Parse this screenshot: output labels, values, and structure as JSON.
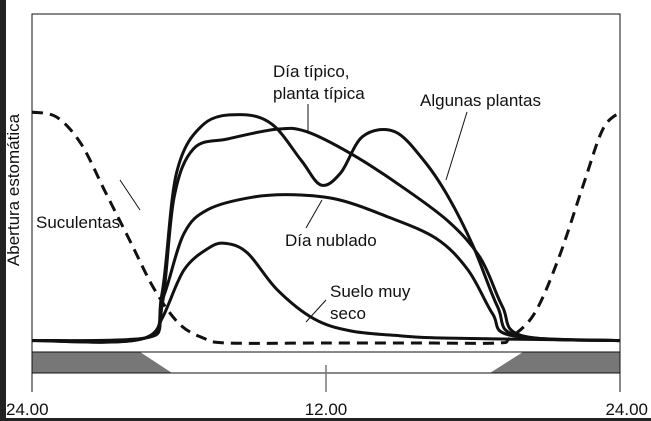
{
  "chart_data": {
    "type": "line",
    "ylabel": "Abertura estomática",
    "xlabel": "",
    "x_ticks": [
      "24.00",
      "12.00",
      "24.00"
    ],
    "xlim_hours": [
      0,
      24
    ],
    "ylim": [
      0,
      1
    ],
    "grid": false,
    "night_day_bar": {
      "night_color": "#777777",
      "day_color": "#ffffff"
    },
    "series": [
      {
        "name": "Día típico, planta típica",
        "style": "solid",
        "x": [
          0,
          4.6,
          5.3,
          5.8,
          6.6,
          8,
          10,
          11.2,
          13,
          15,
          17,
          18.3,
          19.2,
          20,
          24
        ],
        "y": [
          0.01,
          0.02,
          0.15,
          0.6,
          0.8,
          0.84,
          0.88,
          0.87,
          0.78,
          0.65,
          0.5,
          0.35,
          0.15,
          0.03,
          0.01
        ]
      },
      {
        "name": "Algunas plantas",
        "style": "solid",
        "x": [
          0,
          4.6,
          5.3,
          5.9,
          7,
          8.5,
          9.8,
          11,
          11.8,
          12.6,
          13.5,
          14.8,
          16,
          17,
          18,
          19,
          19.8,
          24
        ],
        "y": [
          0.01,
          0.02,
          0.2,
          0.7,
          0.9,
          0.94,
          0.9,
          0.75,
          0.65,
          0.7,
          0.85,
          0.87,
          0.75,
          0.6,
          0.4,
          0.15,
          0.03,
          0.01
        ]
      },
      {
        "name": "Día nublado",
        "style": "solid",
        "x": [
          0,
          4.6,
          5.4,
          6.2,
          7.2,
          9,
          10.7,
          12.5,
          14.5,
          16.5,
          17.8,
          18.8,
          19.6,
          24
        ],
        "y": [
          0.01,
          0.02,
          0.2,
          0.45,
          0.55,
          0.6,
          0.61,
          0.59,
          0.52,
          0.43,
          0.3,
          0.12,
          0.03,
          0.01
        ]
      },
      {
        "name": "Suelo muy seco",
        "style": "solid",
        "x": [
          0,
          4.6,
          5.3,
          6.2,
          7.2,
          7.9,
          8.8,
          10,
          11.5,
          13,
          15,
          17,
          24
        ],
        "y": [
          0.01,
          0.02,
          0.1,
          0.3,
          0.39,
          0.41,
          0.37,
          0.22,
          0.1,
          0.05,
          0.03,
          0.02,
          0.01
        ]
      },
      {
        "name": "Suculentas",
        "style": "dashed",
        "x": [
          0,
          1,
          2,
          3,
          4,
          5,
          6,
          7,
          8,
          12,
          16,
          19,
          19.5,
          20.5,
          21.5,
          22.5,
          23.3,
          24
        ],
        "y": [
          0.95,
          0.93,
          0.82,
          0.62,
          0.42,
          0.22,
          0.08,
          0.02,
          0,
          0,
          0,
          0,
          0.02,
          0.12,
          0.35,
          0.65,
          0.88,
          0.95
        ]
      }
    ]
  }
}
